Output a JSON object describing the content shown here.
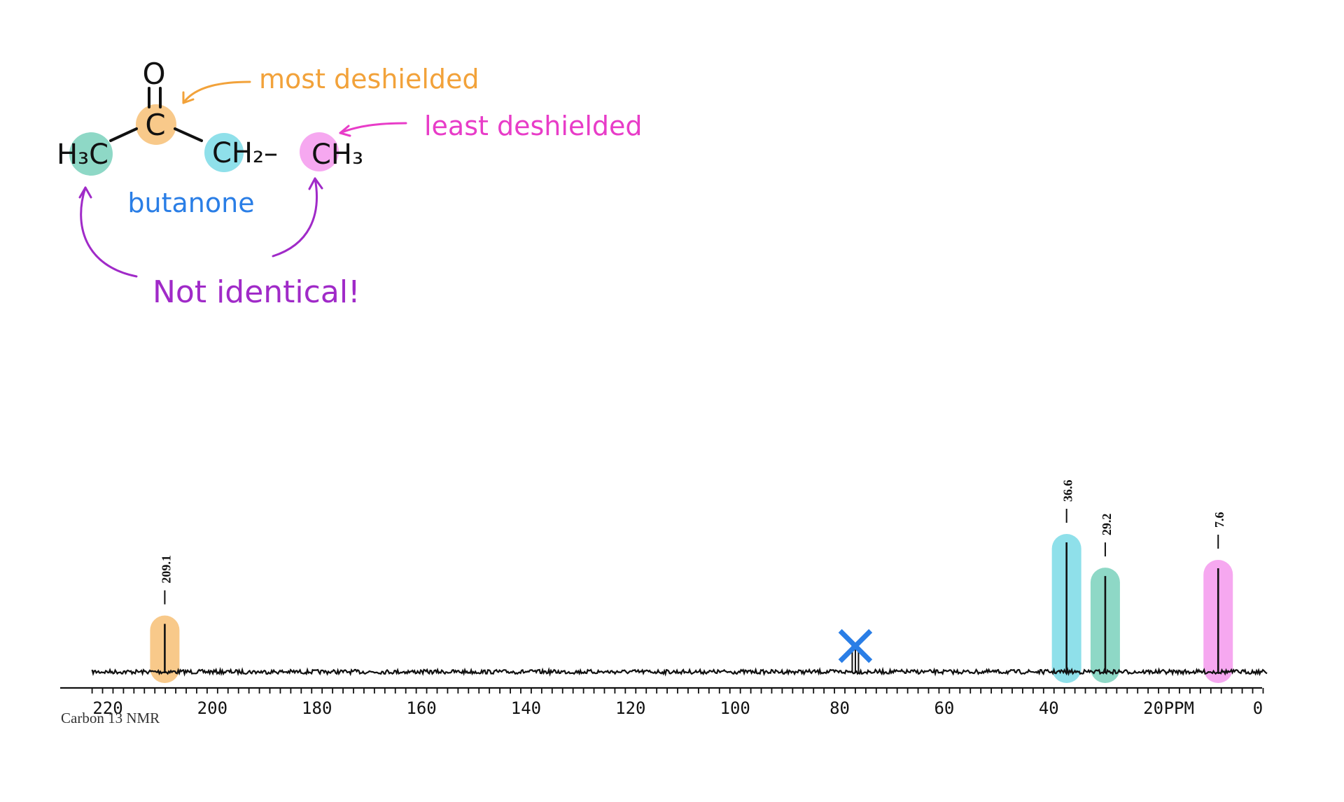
{
  "molecule": {
    "atoms": {
      "oxygen": "O",
      "carbonyl_carbon": "C",
      "left_methyl": "H₃C",
      "methylene": "CH₂–",
      "right_methyl": "CH₃"
    },
    "name": "butanone",
    "annotations": {
      "most": "most deshielded",
      "least": "least deshielded",
      "not_identical": "Not identical!"
    },
    "colors": {
      "carbonyl": "#f8c98a",
      "left_methyl": "#8ed8c6",
      "methylene": "#8fe0ea",
      "right_methyl": "#f6a8f0",
      "orange_text": "#f2a23a",
      "magenta_text": "#e83cc8",
      "purple_text": "#a02ac8",
      "blue_text": "#2a7ee6"
    }
  },
  "chart_data": {
    "type": "line",
    "caption": "Carbon 13 NMR",
    "axis_unit_label": "PPM",
    "xlim": [
      223,
      -1
    ],
    "x_ticks": [
      220,
      200,
      180,
      160,
      140,
      120,
      100,
      80,
      60,
      40,
      20,
      0
    ],
    "peaks": [
      {
        "ppm": 209.1,
        "label": "209.1",
        "relative_height": 0.37,
        "highlight": "#f8c98a"
      },
      {
        "ppm": 36.6,
        "label": "36.6",
        "relative_height": 1.0,
        "highlight": "#8fe0ea"
      },
      {
        "ppm": 29.2,
        "label": "29.2",
        "relative_height": 0.74,
        "highlight": "#8ed8c6"
      },
      {
        "ppm": 7.6,
        "label": "7.6",
        "relative_height": 0.8,
        "highlight": "#f6a8f0"
      }
    ],
    "solvent_peaks": [
      {
        "ppm": 77.6,
        "relative_height": 0.31
      },
      {
        "ppm": 77.0,
        "relative_height": 0.27
      },
      {
        "ppm": 76.4,
        "relative_height": 0.29
      }
    ],
    "solvent_mark": "×",
    "solvent_mark_color": "#2a7ee6"
  }
}
